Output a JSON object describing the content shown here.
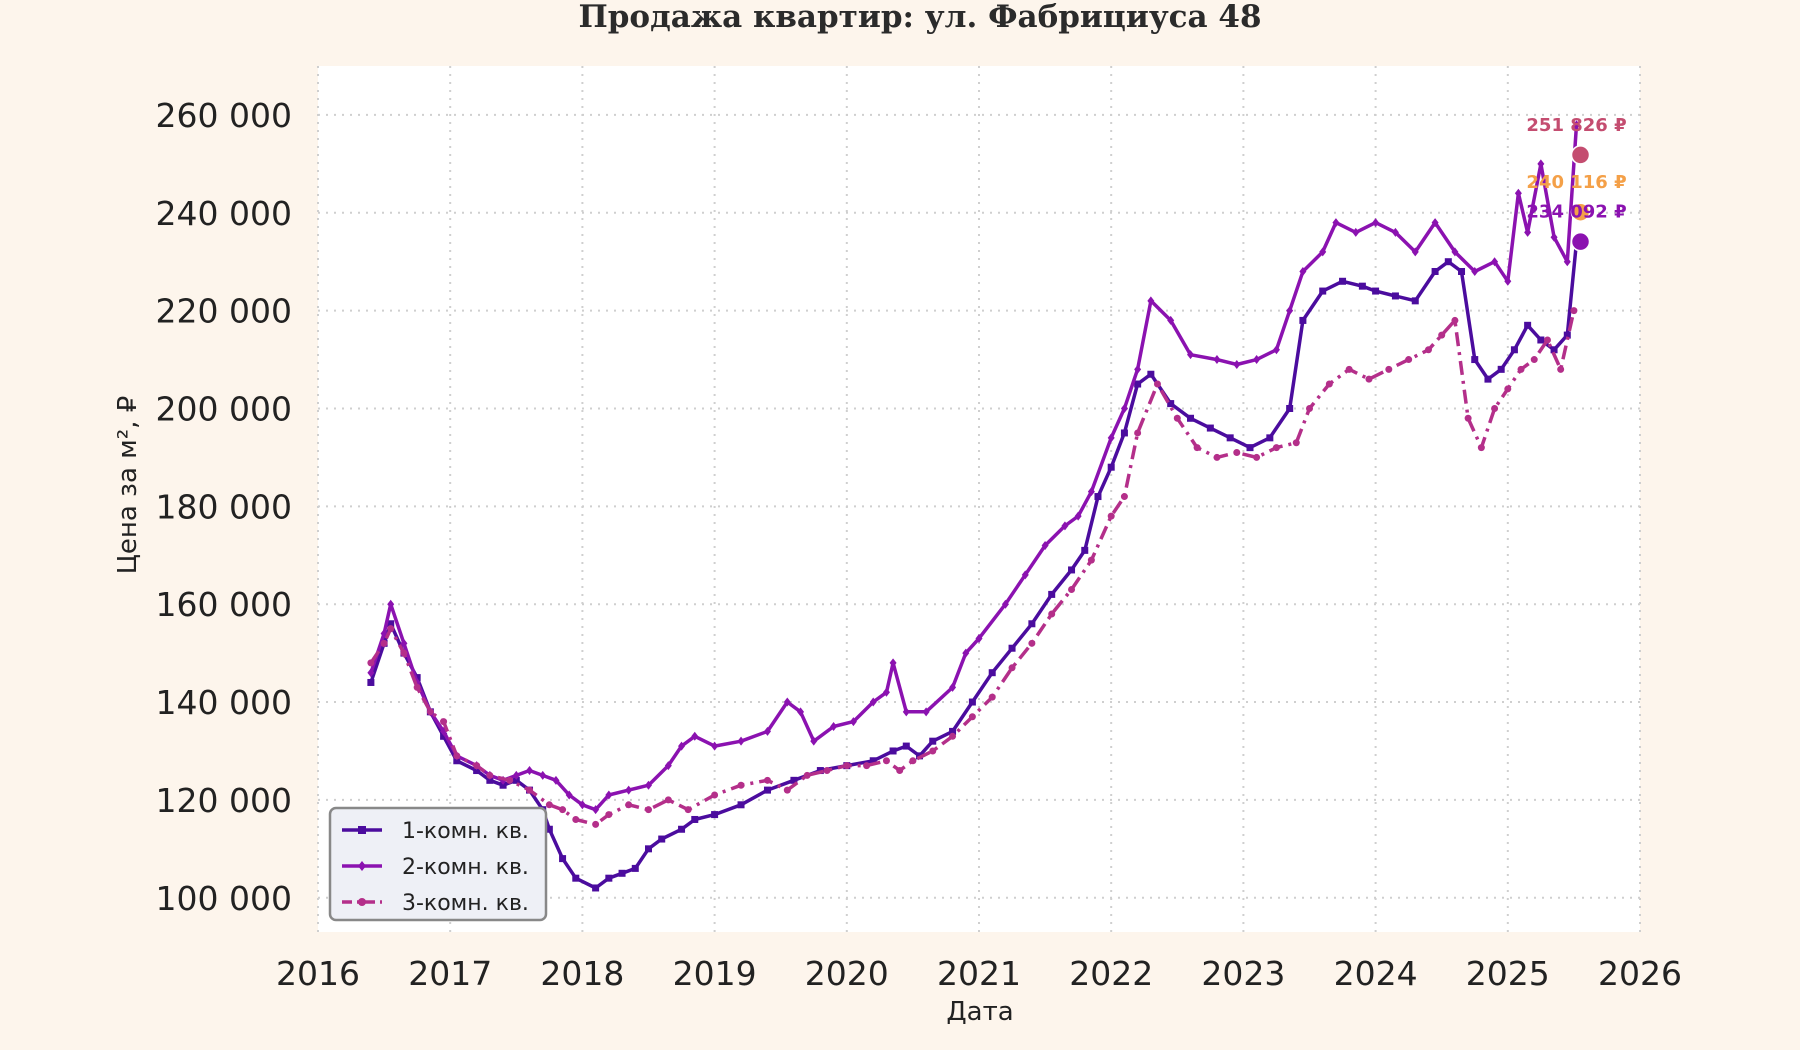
{
  "chart_data": {
    "type": "line",
    "title": "Продажа квартир: ул. Фабрициуса 48",
    "xlabel": "Дата",
    "ylabel": "Цена за м², ₽",
    "xlim": [
      2016.0,
      2026.0
    ],
    "ylim": [
      93000,
      270000
    ],
    "x_ticks": [
      2016,
      2017,
      2018,
      2019,
      2020,
      2021,
      2022,
      2023,
      2024,
      2025,
      2026
    ],
    "x_tick_labels": [
      "2016",
      "2017",
      "2018",
      "2019",
      "2020",
      "2021",
      "2022",
      "2023",
      "2024",
      "2025",
      "2026"
    ],
    "y_ticks": [
      100000,
      120000,
      140000,
      160000,
      180000,
      200000,
      220000,
      240000,
      260000
    ],
    "y_tick_labels": [
      "100 000",
      "120 000",
      "140 000",
      "160 000",
      "180 000",
      "200 000",
      "220 000",
      "240 000",
      "260 000"
    ],
    "grid": true,
    "legend_position": "lower-left",
    "series": [
      {
        "name": "1-комн. кв.",
        "color": "#4b0c9e",
        "style": "solid",
        "marker": "square",
        "x": [
          2016.4,
          2016.5,
          2016.55,
          2016.65,
          2016.75,
          2016.85,
          2016.95,
          2017.05,
          2017.2,
          2017.3,
          2017.4,
          2017.5,
          2017.6,
          2017.7,
          2017.75,
          2017.85,
          2017.95,
          2018.1,
          2018.2,
          2018.3,
          2018.4,
          2018.5,
          2018.6,
          2018.75,
          2018.85,
          2019.0,
          2019.2,
          2019.4,
          2019.6,
          2019.8,
          2020.0,
          2020.2,
          2020.35,
          2020.45,
          2020.55,
          2020.65,
          2020.8,
          2020.95,
          2021.1,
          2021.25,
          2021.4,
          2021.55,
          2021.7,
          2021.8,
          2021.9,
          2022.0,
          2022.1,
          2022.2,
          2022.3,
          2022.45,
          2022.6,
          2022.75,
          2022.9,
          2023.05,
          2023.2,
          2023.35,
          2023.45,
          2023.6,
          2023.75,
          2023.9,
          2024.0,
          2024.15,
          2024.3,
          2024.45,
          2024.55,
          2024.65,
          2024.75,
          2024.85,
          2024.95,
          2025.05,
          2025.15,
          2025.25,
          2025.35,
          2025.45,
          2025.52
        ],
        "y": [
          144000,
          152000,
          156000,
          150000,
          145000,
          138000,
          133000,
          128000,
          126000,
          124000,
          123000,
          124000,
          122000,
          118000,
          114000,
          108000,
          104000,
          102000,
          104000,
          105000,
          106000,
          110000,
          112000,
          114000,
          116000,
          117000,
          119000,
          122000,
          124000,
          126000,
          127000,
          128000,
          130000,
          131000,
          129000,
          132000,
          134000,
          140000,
          146000,
          151000,
          156000,
          162000,
          167000,
          171000,
          182000,
          188000,
          195000,
          205000,
          207000,
          201000,
          198000,
          196000,
          194000,
          192000,
          194000,
          200000,
          218000,
          224000,
          226000,
          225000,
          224000,
          223000,
          222000,
          228000,
          230000,
          228000,
          210000,
          206000,
          208000,
          212000,
          217000,
          214000,
          212000,
          215000,
          234000
        ]
      },
      {
        "name": "2-комн. кв.",
        "color": "#8b12b0",
        "style": "solid",
        "marker": "diamond",
        "x": [
          2016.4,
          2016.5,
          2016.55,
          2016.65,
          2016.75,
          2016.85,
          2016.95,
          2017.05,
          2017.2,
          2017.3,
          2017.4,
          2017.5,
          2017.6,
          2017.7,
          2017.8,
          2017.9,
          2018.0,
          2018.1,
          2018.2,
          2018.35,
          2018.5,
          2018.65,
          2018.75,
          2018.85,
          2019.0,
          2019.2,
          2019.4,
          2019.55,
          2019.65,
          2019.75,
          2019.9,
          2020.05,
          2020.2,
          2020.3,
          2020.35,
          2020.45,
          2020.6,
          2020.8,
          2020.9,
          2021.0,
          2021.2,
          2021.35,
          2021.5,
          2021.65,
          2021.75,
          2021.85,
          2022.0,
          2022.1,
          2022.2,
          2022.3,
          2022.45,
          2022.6,
          2022.8,
          2022.95,
          2023.1,
          2023.25,
          2023.35,
          2023.45,
          2023.6,
          2023.7,
          2023.85,
          2024.0,
          2024.15,
          2024.3,
          2024.45,
          2024.6,
          2024.75,
          2024.9,
          2025.0,
          2025.08,
          2025.15,
          2025.25,
          2025.35,
          2025.45,
          2025.52
        ],
        "y": [
          146000,
          154000,
          160000,
          152000,
          144000,
          138000,
          134000,
          129000,
          127000,
          125000,
          124000,
          125000,
          126000,
          125000,
          124000,
          121000,
          119000,
          118000,
          121000,
          122000,
          123000,
          127000,
          131000,
          133000,
          131000,
          132000,
          134000,
          140000,
          138000,
          132000,
          135000,
          136000,
          140000,
          142000,
          148000,
          138000,
          138000,
          143000,
          150000,
          153000,
          160000,
          166000,
          172000,
          176000,
          178000,
          183000,
          194000,
          200000,
          208000,
          222000,
          218000,
          211000,
          210000,
          209000,
          210000,
          212000,
          220000,
          228000,
          232000,
          238000,
          236000,
          238000,
          236000,
          232000,
          238000,
          232000,
          228000,
          230000,
          226000,
          244000,
          236000,
          250000,
          235000,
          230000,
          258000
        ]
      },
      {
        "name": "3-комн. кв.",
        "color": "#b42f8a",
        "style": "dashdot",
        "marker": "circle",
        "x": [
          2016.4,
          2016.5,
          2016.55,
          2016.65,
          2016.75,
          2016.85,
          2016.95,
          2017.05,
          2017.2,
          2017.3,
          2017.45,
          2017.6,
          2017.75,
          2017.85,
          2017.95,
          2018.1,
          2018.2,
          2018.35,
          2018.5,
          2018.65,
          2018.8,
          2019.0,
          2019.2,
          2019.4,
          2019.55,
          2019.7,
          2019.85,
          2020.0,
          2020.15,
          2020.3,
          2020.4,
          2020.5,
          2020.65,
          2020.8,
          2020.95,
          2021.1,
          2021.25,
          2021.4,
          2021.55,
          2021.7,
          2021.85,
          2022.0,
          2022.1,
          2022.2,
          2022.35,
          2022.5,
          2022.65,
          2022.8,
          2022.95,
          2023.1,
          2023.25,
          2023.4,
          2023.5,
          2023.65,
          2023.8,
          2023.95,
          2024.1,
          2024.25,
          2024.4,
          2024.5,
          2024.6,
          2024.7,
          2024.8,
          2024.9,
          2025.0,
          2025.1,
          2025.2,
          2025.3,
          2025.4,
          2025.5
        ],
        "y": [
          148000,
          152000,
          155000,
          150000,
          143000,
          138000,
          136000,
          129000,
          127000,
          125000,
          124000,
          122000,
          119000,
          118000,
          116000,
          115000,
          117000,
          119000,
          118000,
          120000,
          118000,
          121000,
          123000,
          124000,
          122000,
          125000,
          126000,
          127000,
          127000,
          128000,
          126000,
          128000,
          130000,
          133000,
          137000,
          141000,
          147000,
          152000,
          158000,
          163000,
          169000,
          178000,
          182000,
          195000,
          205000,
          198000,
          192000,
          190000,
          191000,
          190000,
          192000,
          193000,
          200000,
          205000,
          208000,
          206000,
          208000,
          210000,
          212000,
          215000,
          218000,
          198000,
          192000,
          200000,
          204000,
          208000,
          210000,
          214000,
          208000,
          220000
        ]
      }
    ],
    "end_markers": [
      {
        "label": "251 826 ₽",
        "value": 251826,
        "x": 2025.55,
        "color": "#c44d70"
      },
      {
        "label": "240 116 ₽",
        "value": 240116,
        "x": 2025.55,
        "color": "#f4a048"
      },
      {
        "label": "234 092 ₽",
        "value": 234092,
        "x": 2025.55,
        "color": "#8b12b0"
      }
    ]
  }
}
